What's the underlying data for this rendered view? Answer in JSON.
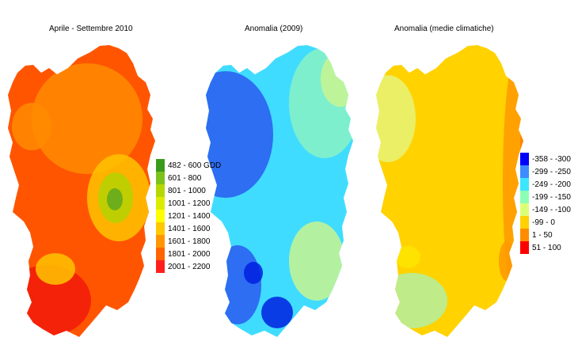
{
  "panels": [
    {
      "title": "Aprile - Settembre 2010",
      "palette": {
        "base": "#ff5500",
        "dark": "#f21a0a",
        "mid": "#ff8c00",
        "light": "#ffc400",
        "green": "#b4d200",
        "deep": "#5fa81e"
      }
    },
    {
      "title": "Anomalia (2009)",
      "palette": {
        "base": "#40dcff",
        "dark": "#2a5bf0",
        "mid": "#4aa8ff",
        "light": "#8af2c4",
        "green": "#c8f590",
        "deep": "#0020e0"
      }
    },
    {
      "title": "Anomalia (medie climatiche)",
      "palette": {
        "base": "#ffd200",
        "dark": "#ff9900",
        "mid": "#ffe600",
        "light": "#e8f578",
        "green": "#b4f0a0",
        "deep": "#ff7f00"
      }
    }
  ],
  "legends": [
    {
      "items": [
        {
          "label": "482 - 600 GDD",
          "color": "#3a9a1c"
        },
        {
          "label": "601 - 800",
          "color": "#7cc21a"
        },
        {
          "label": "801 - 1000",
          "color": "#b4d800"
        },
        {
          "label": "1001 - 1200",
          "color": "#dcec00"
        },
        {
          "label": "1201 - 1400",
          "color": "#ffff00"
        },
        {
          "label": "1401 - 1600",
          "color": "#ffc800"
        },
        {
          "label": "1601 - 1800",
          "color": "#ff9600"
        },
        {
          "label": "1801 - 2000",
          "color": "#ff6400"
        },
        {
          "label": "2001 - 2200",
          "color": "#ff1e1e"
        }
      ]
    },
    {
      "items": [
        {
          "label": "-358 - -300",
          "color": "#0000ff"
        },
        {
          "label": "-299 - -250",
          "color": "#3c8cff"
        },
        {
          "label": "-249 - -200",
          "color": "#3ce6ff"
        },
        {
          "label": "-199 - -150",
          "color": "#8cffb4"
        },
        {
          "label": "-149 - -100",
          "color": "#dcff78"
        },
        {
          "label": "-99 - 0",
          "color": "#ffd200"
        },
        {
          "label": "1 - 50",
          "color": "#ff8c00"
        },
        {
          "label": "51 - 100",
          "color": "#ff0000"
        }
      ]
    }
  ]
}
